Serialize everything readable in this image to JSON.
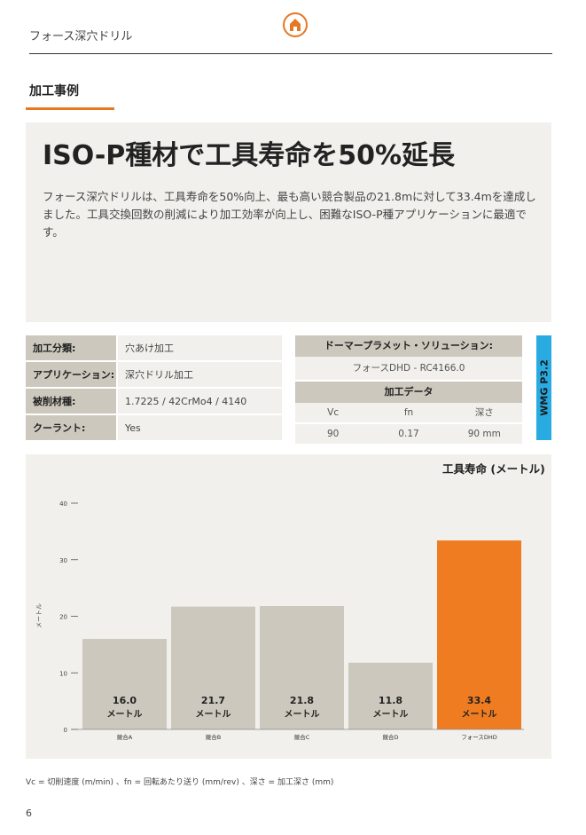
{
  "header": {
    "title": "フォース深穴ドリル",
    "home_icon": "home-icon"
  },
  "section": {
    "title": "加工事例"
  },
  "hero": {
    "title": "ISO-P種材で工具寿命を50%延長",
    "body": "フォース深穴ドリルは、工具寿命を50%向上、最も高い競合製品の21.8mに対して33.4mを達成しました。工具交換回数の削減により加工効率が向上し、困難なISO-P種アプリケーションに最適です。"
  },
  "info": [
    {
      "label": "加工分類:",
      "value": "穴あけ加工"
    },
    {
      "label": "アプリケーション:",
      "value": "深穴ドリル加工"
    },
    {
      "label": "被削材種:",
      "value": "1.7225 / 42CrMo4 / 4140"
    },
    {
      "label": "クーラント:",
      "value": "Yes"
    }
  ],
  "solution": {
    "title": "ドーマープラメット・ソリューション:",
    "value": "フォースDHD - RC4166.0"
  },
  "machining_data": {
    "title": "加工データ",
    "headers": [
      "Vc",
      "fn",
      "深さ"
    ],
    "values": [
      "90",
      "0.17",
      "90 mm"
    ]
  },
  "side_tab": {
    "label": "WMG P3.2",
    "color": "#29abe2"
  },
  "colors": {
    "accent": "#e87722",
    "bar": "#cdc8bd",
    "highlight_bar": "#f07c22",
    "panel": "#f1f0ec"
  },
  "chart_data": {
    "type": "bar",
    "title": "工具寿命 (メートル)",
    "ylabel": "メートル",
    "xlabel": "",
    "categories": [
      "競合A",
      "競合B",
      "競合C",
      "競合D",
      "フォースDHD"
    ],
    "values": [
      16.0,
      21.7,
      21.8,
      11.8,
      33.4
    ],
    "value_labels": [
      "16.0",
      "21.7",
      "21.8",
      "11.8",
      "33.4"
    ],
    "unit_label": "メートル",
    "highlight_index": 4,
    "yticks": [
      0,
      10,
      20,
      30,
      40
    ],
    "ylim": [
      0,
      40
    ],
    "grid": false
  },
  "footnote": "Vc = 切削速度 (m/min) 、fn = 回転あたり送り (mm/rev) 、深さ = 加工深さ (mm)",
  "page_number": "6"
}
